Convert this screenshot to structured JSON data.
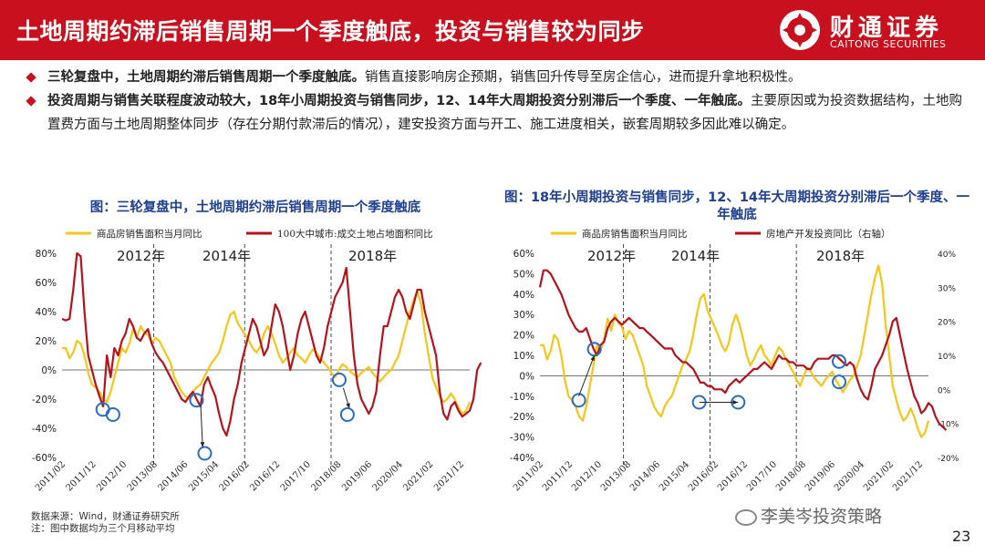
{
  "header": {
    "title": "土地周期约滞后销售周期一个季度触底，投资与销售较为同步",
    "logo_cn": "财通证券",
    "logo_en": "CAITONG SECURITIES",
    "brand_color": "#c8101e"
  },
  "bullets": [
    {
      "bold": "三轮复盘中，土地周期约滞后销售周期一个季度触底。",
      "text": "销售直接影响房企预期，销售回升传导至房企信心，进而提升拿地积极性。"
    },
    {
      "bold": "投资周期与销售关联程度波动较大，18年小周期投资与销售同步，12、14年大周期投资分别滞后一个季度、一年触底。",
      "text": "主要原因或为投资数据结构，土地购置费方面与土地周期整体同步（存在分期付款滞后的情况），建安投资方面与开工、施工进度相关，嵌套周期较多因此难以确定。"
    }
  ],
  "footer": {
    "source": "数据来源：Wind，财通证券研究所",
    "note": "注：图中数据均为三个月移动平均",
    "watermark": "李美岑投资策略",
    "page": "23"
  },
  "chart_data": [
    {
      "type": "line",
      "title": "图：三轮复盘中，土地周期约滞后销售周期一个季度触底",
      "ylim": [
        -60,
        80
      ],
      "yticks": [
        "80%",
        "60%",
        "40%",
        "20%",
        "0%",
        "-20%",
        "-40%",
        "-60%"
      ],
      "xticks": [
        "2011/02",
        "2011/12",
        "2012/10",
        "2013/08",
        "2014/06",
        "2015/04",
        "2016/02",
        "2016/12",
        "2017/10",
        "2018/08",
        "2019/06",
        "2020/04",
        "2021/02",
        "2021/12"
      ],
      "annotations": [
        "2012年",
        "2014年",
        "2018年"
      ],
      "series": [
        {
          "name": "商品房销售面积当月同比",
          "color": "#f5c518",
          "values": [
            15,
            15,
            8,
            12,
            20,
            18,
            10,
            -2,
            -10,
            -12,
            -15,
            -20,
            -22,
            -15,
            -5,
            5,
            15,
            12,
            18,
            28,
            22,
            30,
            26,
            24,
            18,
            22,
            20,
            15,
            10,
            5,
            -5,
            -10,
            -15,
            -18,
            -20,
            -15,
            -12,
            -10,
            -5,
            0,
            5,
            8,
            12,
            20,
            30,
            38,
            40,
            32,
            28,
            24,
            20,
            15,
            12,
            16,
            25,
            30,
            25,
            18,
            10,
            5,
            8,
            12,
            15,
            10,
            8,
            5,
            10,
            14,
            12,
            8,
            5,
            2,
            -2,
            -5,
            0,
            4,
            2,
            -1,
            -3,
            -5,
            -2,
            0,
            2,
            -2,
            -5,
            -8,
            -5,
            -2,
            0,
            5,
            10,
            20,
            30,
            40,
            48,
            54,
            45,
            25,
            10,
            -5,
            -12,
            -18,
            -22,
            -20,
            -16,
            -20,
            -26,
            -30,
            -28,
            -22
          ]
        },
        {
          "name": "100大中城市:成交土地占地面积同比",
          "color": "#b5121b",
          "values": [
            35,
            34,
            35,
            55,
            80,
            78,
            40,
            10,
            0,
            -10,
            -18,
            -25,
            10,
            -5,
            15,
            10,
            20,
            25,
            35,
            30,
            22,
            20,
            25,
            28,
            18,
            12,
            8,
            5,
            0,
            -5,
            -10,
            -15,
            -20,
            -22,
            -18,
            -15,
            -20,
            -25,
            -10,
            -5,
            -12,
            -18,
            -30,
            -40,
            -45,
            -35,
            -20,
            -10,
            5,
            15,
            25,
            35,
            30,
            20,
            10,
            15,
            30,
            45,
            40,
            30,
            15,
            0,
            10,
            25,
            35,
            40,
            30,
            20,
            10,
            5,
            15,
            30,
            40,
            50,
            55,
            60,
            70,
            40,
            10,
            -10,
            -20,
            -25,
            -30,
            -25,
            -15,
            10,
            30,
            30,
            40,
            50,
            55,
            50,
            40,
            35,
            45,
            55,
            55,
            40,
            30,
            20,
            10,
            -15,
            -30,
            -34,
            -25,
            -22,
            -28,
            -32,
            -30,
            -28,
            -20,
            0,
            5
          ]
        }
      ]
    },
    {
      "type": "line",
      "title": "图：18年小周期投资与销售同步，12、14年大周期投资分别滞后一个季度、一年触底",
      "ylim": [
        -40,
        60
      ],
      "ylim_right": [
        -20,
        40
      ],
      "yticks": [
        "60%",
        "50%",
        "40%",
        "30%",
        "20%",
        "10%",
        "0%",
        "-10%",
        "-20%",
        "-30%",
        "-40%"
      ],
      "yticks_right": [
        "40%",
        "30%",
        "20%",
        "10%",
        "0%",
        "-10%",
        "-20%"
      ],
      "xticks": [
        "2011/02",
        "2011/12",
        "2012/10",
        "2013/08",
        "2014/06",
        "2015/04",
        "2016/02",
        "2016/12",
        "2017/10",
        "2018/08",
        "2019/06",
        "2020/04",
        "2021/02",
        "2021/12"
      ],
      "annotations": [
        "2012年",
        "2014年",
        "2018年"
      ],
      "series": [
        {
          "name": "商品房销售面积当月同比",
          "color": "#f5c518",
          "axis": "left",
          "values": [
            15,
            15,
            8,
            12,
            20,
            18,
            10,
            -2,
            -10,
            -12,
            -15,
            -20,
            -22,
            -15,
            -5,
            5,
            15,
            12,
            18,
            28,
            22,
            30,
            26,
            24,
            18,
            22,
            20,
            15,
            10,
            5,
            -5,
            -10,
            -15,
            -18,
            -20,
            -15,
            -12,
            -10,
            -5,
            0,
            5,
            8,
            12,
            20,
            30,
            38,
            40,
            32,
            28,
            24,
            20,
            15,
            12,
            16,
            25,
            30,
            25,
            18,
            10,
            5,
            8,
            12,
            15,
            10,
            8,
            5,
            10,
            14,
            12,
            8,
            5,
            2,
            -2,
            -5,
            0,
            4,
            2,
            -1,
            -3,
            -5,
            -2,
            0,
            2,
            -2,
            -5,
            -8,
            -5,
            -2,
            0,
            5,
            10,
            20,
            30,
            40,
            48,
            54,
            45,
            25,
            10,
            -5,
            -12,
            -18,
            -22,
            -20,
            -16,
            -20,
            -26,
            -30,
            -28,
            -22
          ]
        },
        {
          "name": "房地产开发投资同比（右轴）",
          "color": "#b5121b",
          "axis": "right",
          "values": [
            30,
            35,
            35,
            34,
            32,
            30,
            28,
            25,
            22,
            20,
            18,
            17,
            17,
            18,
            15,
            12,
            10,
            13,
            14,
            18,
            20,
            21,
            20,
            19,
            20,
            21,
            20,
            19,
            18,
            18,
            17,
            16,
            15,
            14,
            13,
            12,
            12,
            12,
            10,
            9,
            8,
            8,
            7,
            6,
            4,
            2,
            2,
            1,
            1,
            0,
            0,
            0,
            -1,
            1,
            2,
            3,
            2,
            3,
            4,
            5,
            6,
            6,
            7,
            8,
            7,
            6,
            8,
            10,
            9,
            9,
            8,
            8,
            7,
            7,
            7,
            6,
            6,
            8,
            9,
            9,
            9,
            9,
            10,
            10,
            9,
            8,
            7,
            8,
            7,
            3,
            0,
            -2,
            -3,
            1,
            6,
            8,
            10,
            13,
            16,
            20,
            21,
            16,
            11,
            6,
            2,
            -2,
            -4,
            -7,
            -6,
            -4,
            -5,
            -8,
            -10,
            -11,
            -12
          ]
        }
      ]
    }
  ]
}
